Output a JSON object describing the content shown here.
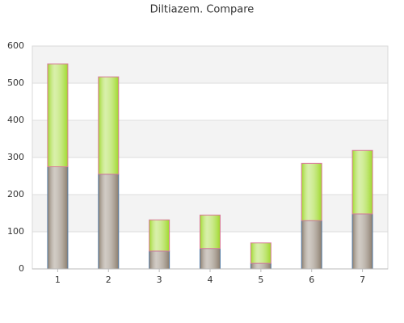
{
  "chart_data": {
    "type": "stacked-bar",
    "title": "Diltiazem. Compare",
    "categories": [
      "1",
      "2",
      "3",
      "4",
      "5",
      "6",
      "7"
    ],
    "series": [
      {
        "color": "#8a7c6c",
        "values": [
          275,
          255,
          48,
          55,
          15,
          130,
          148
        ]
      },
      {
        "color": "#9ed82a",
        "values": [
          277,
          262,
          84,
          90,
          55,
          154,
          171
        ]
      }
    ],
    "ylim": [
      0,
      600
    ],
    "yticks": [
      0,
      100,
      200,
      300,
      400,
      500,
      600
    ],
    "grid": true
  }
}
